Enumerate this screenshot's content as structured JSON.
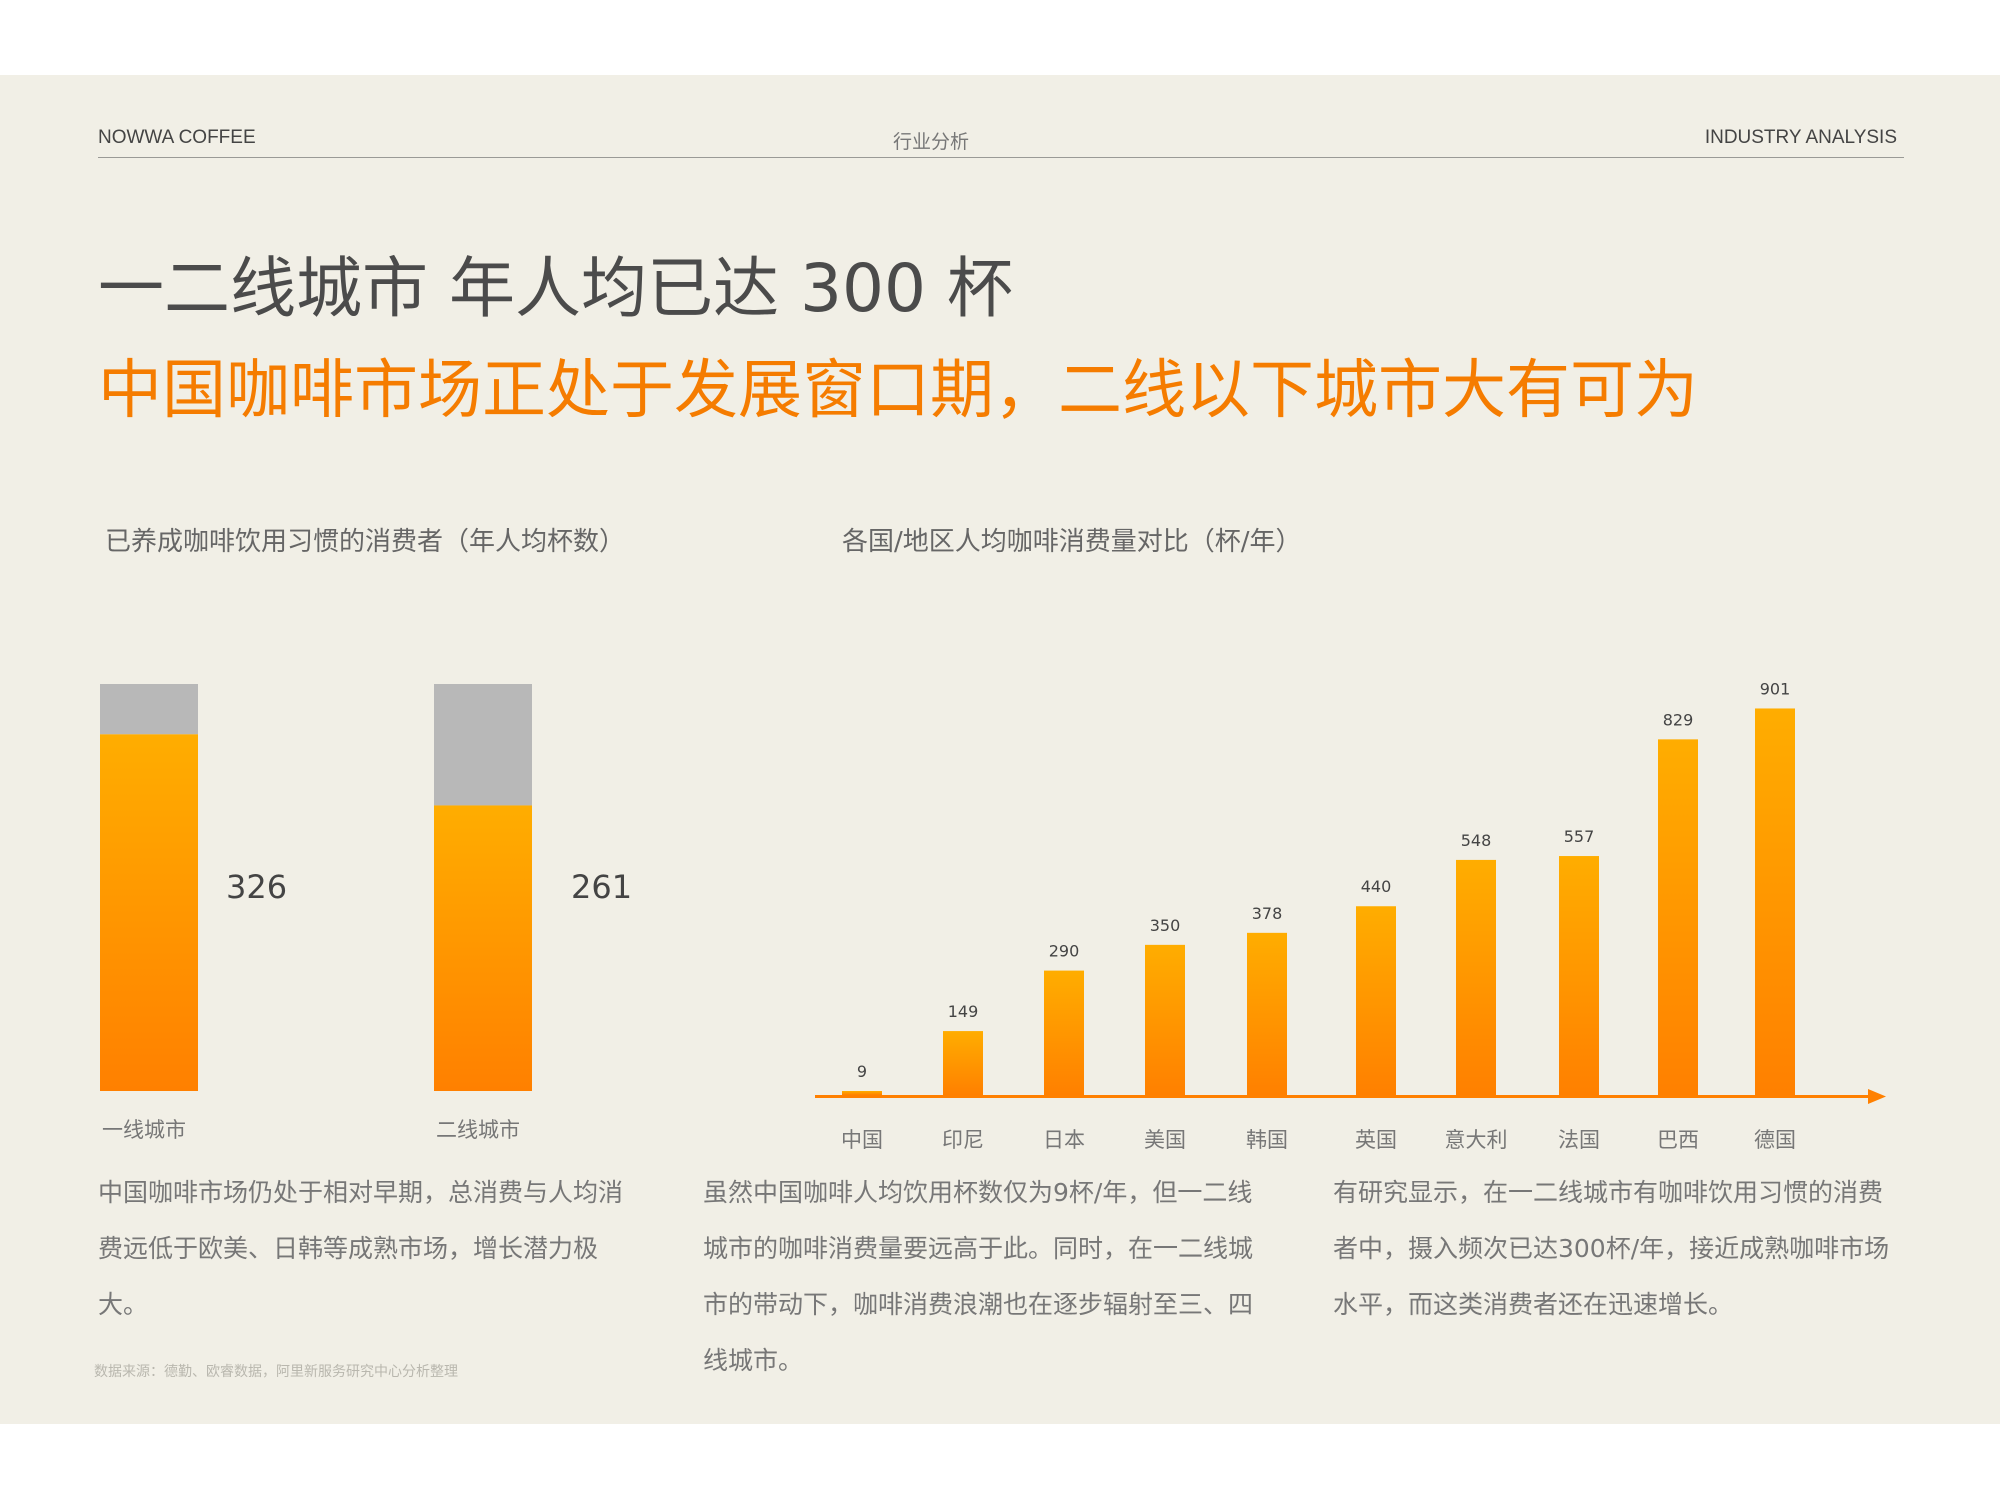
{
  "header": {
    "brand": "NOWWA COFFEE",
    "section": "行业分析",
    "section_en": "INDUSTRY ANALYSIS"
  },
  "headline": "一二线城市 年人均已达 300 杯",
  "subheadline": "中国咖啡市场正处于发展窗口期，二线以下城市大有可为",
  "chart_data": [
    {
      "type": "bar",
      "title": "已养成咖啡饮用习惯的消费者（年人均杯数）",
      "categories": [
        "一线城市",
        "二线城市"
      ],
      "values": [
        326,
        261
      ],
      "ylim": [
        0,
        372
      ],
      "colors": {
        "fill_top": "#ffad00",
        "fill_bottom": "#ff8000",
        "remainder": "#b8b8b8"
      }
    },
    {
      "type": "bar",
      "title": "各国/地区人均咖啡消费量对比（杯/年）",
      "categories": [
        "中国",
        "印尼",
        "日本",
        "美国",
        "韩国",
        "英国",
        "意大利",
        "法国",
        "巴西",
        "德国"
      ],
      "values": [
        9,
        149,
        290,
        350,
        378,
        440,
        548,
        557,
        829,
        901
      ],
      "ylim": [
        0,
        960
      ],
      "colors": {
        "fill_top": "#ffad00",
        "fill_bottom": "#ff8000",
        "axis": "#ff8000"
      }
    }
  ],
  "body": {
    "col1": "中国咖啡市场仍处于相对早期，总消费与人均消费远低于欧美、日韩等成熟市场，增长潜力极大。",
    "col2": "虽然中国咖啡人均饮用杯数仅为9杯/年，但一二线城市的咖啡消费量要远高于此。同时，在一二线城市的带动下，咖啡消费浪潮也在逐步辐射至三、四线城市。",
    "col3": "有研究显示，在一二线城市有咖啡饮用习惯的消费者中，摄入频次已达300杯/年，接近成熟咖啡市场水平，而这类消费者还在迅速增长。"
  },
  "source": "数据来源：德勤、欧睿数据，阿里新服务研究中心分析整理"
}
